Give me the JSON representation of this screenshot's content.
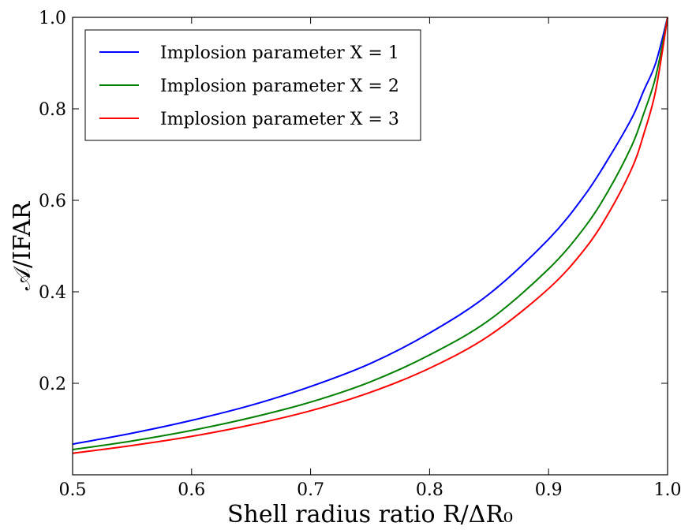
{
  "chart_data": {
    "type": "line",
    "title": "",
    "xlabel": "Shell radius ratio R/ΔR₀",
    "ylabel": "𝒜/IFAR",
    "xlim": [
      0.5,
      1.0
    ],
    "ylim": [
      0.0,
      1.0
    ],
    "x_ticks": [
      0.5,
      0.6,
      0.7,
      0.8,
      0.9,
      1.0
    ],
    "x_tick_labels": [
      "0.5",
      "0.6",
      "0.7",
      "0.8",
      "0.9",
      "1.0"
    ],
    "y_ticks": [
      0.2,
      0.4,
      0.6,
      0.8,
      1.0
    ],
    "y_tick_labels": [
      "0.2",
      "0.4",
      "0.6",
      "0.8",
      "1.0"
    ],
    "grid": false,
    "legend_position": "top-left",
    "x": [
      0.5,
      0.55,
      0.6,
      0.65,
      0.7,
      0.75,
      0.8,
      0.85,
      0.9,
      0.93,
      0.95,
      0.97,
      0.98,
      0.99,
      1.0
    ],
    "series": [
      {
        "name": "Implosion parameter X = 1",
        "color": "#0000ff",
        "values": [
          0.067,
          0.091,
          0.119,
          0.152,
          0.193,
          0.243,
          0.31,
          0.395,
          0.515,
          0.61,
          0.69,
          0.78,
          0.84,
          0.9,
          1.0
        ]
      },
      {
        "name": "Implosion parameter X = 2",
        "color": "#008000",
        "values": [
          0.055,
          0.074,
          0.097,
          0.125,
          0.159,
          0.203,
          0.262,
          0.338,
          0.45,
          0.54,
          0.62,
          0.72,
          0.79,
          0.87,
          1.0
        ]
      },
      {
        "name": "Implosion parameter X = 3",
        "color": "#ff0000",
        "values": [
          0.047,
          0.064,
          0.084,
          0.109,
          0.14,
          0.18,
          0.233,
          0.304,
          0.407,
          0.492,
          0.57,
          0.67,
          0.745,
          0.84,
          1.0
        ]
      }
    ]
  }
}
